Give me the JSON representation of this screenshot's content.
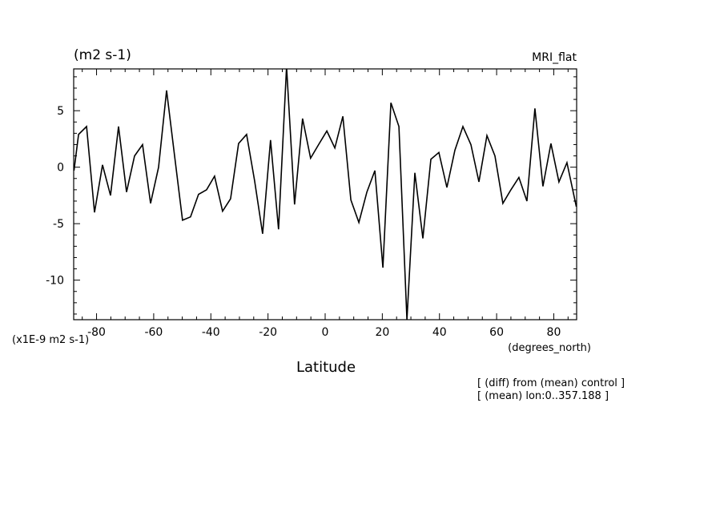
{
  "chart_data": {
    "type": "line",
    "unit_label": "(m2 s-1)",
    "model_label": "MRI_flat",
    "scale_label": "(x1E-9 m2 s-1)",
    "xlabel": "Latitude",
    "x_unit_label": "(degrees_north)",
    "notes": [
      "[ (diff) from (mean) control ]",
      "[ (mean) lon:0..357.188 ]"
    ],
    "xlim": [
      -88,
      88
    ],
    "ylim": [
      -13.5,
      8.7
    ],
    "xticks": [
      -80,
      -60,
      -40,
      -20,
      0,
      20,
      40,
      60,
      80
    ],
    "xtick_labels": [
      "-80",
      "-60",
      "-40",
      "-20",
      "0",
      "20",
      "40",
      "60",
      "80"
    ],
    "yticks": [
      5,
      0,
      -5,
      -10
    ],
    "ytick_labels": [
      "5",
      "0",
      "-5",
      "-10"
    ],
    "grid": false,
    "line_color": "#000000",
    "x": [
      -87.9,
      -86.3,
      -83.5,
      -80.7,
      -77.9,
      -75.1,
      -72.3,
      -69.5,
      -66.7,
      -63.9,
      -61.1,
      -58.3,
      -55.5,
      -52.7,
      -49.9,
      -47.1,
      -44.3,
      -41.5,
      -38.7,
      -35.9,
      -33.1,
      -30.3,
      -27.5,
      -24.7,
      -21.9,
      -19.1,
      -16.3,
      -13.5,
      -10.7,
      -7.9,
      -5.1,
      -2.3,
      0.6,
      3.4,
      6.2,
      9.0,
      11.8,
      14.6,
      17.4,
      20.2,
      23.0,
      25.8,
      28.6,
      31.4,
      34.2,
      37.0,
      39.8,
      42.6,
      45.4,
      48.2,
      51.0,
      53.8,
      56.6,
      59.4,
      62.2,
      65.0,
      67.8,
      70.6,
      73.4,
      76.2,
      79.0,
      81.8,
      84.6,
      87.9
    ],
    "values": [
      -0.3,
      2.9,
      3.6,
      -4.0,
      0.2,
      -2.5,
      3.6,
      -2.2,
      1.0,
      2.0,
      -3.2,
      0.0,
      6.8,
      1.0,
      -4.7,
      -4.4,
      -2.4,
      -2.0,
      -0.8,
      -3.9,
      -2.8,
      2.1,
      2.9,
      -1.2,
      -5.9,
      2.4,
      -5.5,
      8.9,
      -3.3,
      4.3,
      0.8,
      2.0,
      3.2,
      1.7,
      4.5,
      -2.9,
      -4.9,
      -2.2,
      -0.3,
      -8.9,
      5.7,
      3.6,
      -13.5,
      -0.5,
      -6.3,
      0.7,
      1.3,
      -1.8,
      1.5,
      3.6,
      2.0,
      -1.3,
      2.8,
      1.0,
      -3.2,
      -2.0,
      -0.9,
      -3.0,
      5.2,
      -1.7,
      2.1,
      -1.3,
      0.4,
      -3.5
    ]
  }
}
